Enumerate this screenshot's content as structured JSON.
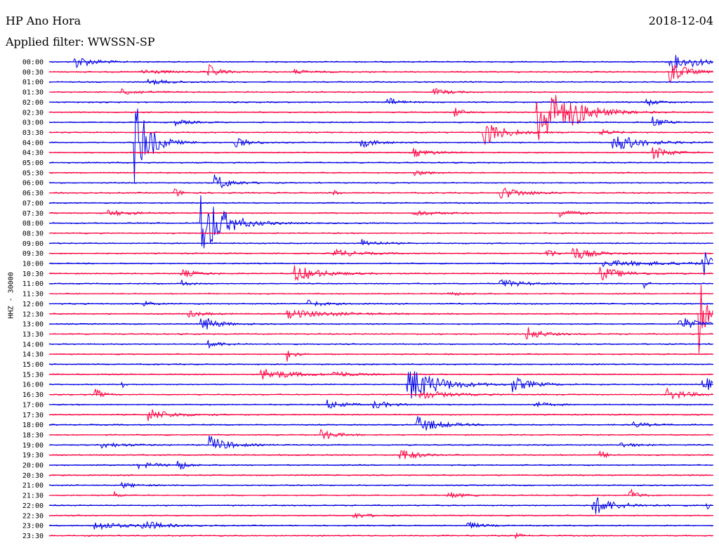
{
  "header": {
    "station": "HP Ano Hora",
    "filter": "Applied filter: WWSSN-SP",
    "date": "2018-12-04"
  },
  "chart_data": {
    "type": "line",
    "title": "HP Ano Hora",
    "subtitle": "Applied filter: WWSSN-SP",
    "date": "2018-12-04",
    "ylabel": "HHZ - 30000",
    "row_labels": [
      "00:00",
      "00:30",
      "01:00",
      "01:30",
      "02:00",
      "02:30",
      "03:00",
      "03:30",
      "04:00",
      "04:30",
      "05:00",
      "05:30",
      "06:00",
      "06:30",
      "07:00",
      "07:30",
      "08:00",
      "08:30",
      "09:00",
      "09:30",
      "10:00",
      "10:30",
      "11:00",
      "11:30",
      "12:00",
      "12:30",
      "13:00",
      "13:30",
      "14:00",
      "14:30",
      "15:00",
      "15:30",
      "16:00",
      "16:30",
      "17:00",
      "17:30",
      "18:00",
      "18:30",
      "19:00",
      "19:30",
      "20:00",
      "20:30",
      "21:00",
      "21:30",
      "22:00",
      "22:30",
      "23:00",
      "23:30"
    ],
    "trace_colors": [
      "#0000e6",
      "#ff0040"
    ],
    "events": [
      {
        "row": 0,
        "t": 0.04,
        "amp": 9,
        "dur": 0.025
      },
      {
        "row": 0,
        "t": 0.935,
        "amp": 14,
        "dur": 0.02
      },
      {
        "row": 0,
        "t": 0.97,
        "amp": 4,
        "dur": 0.03
      },
      {
        "row": 1,
        "t": 0.14,
        "amp": 4,
        "dur": 0.03
      },
      {
        "row": 1,
        "t": 0.24,
        "amp": 10,
        "dur": 0.015
      },
      {
        "row": 1,
        "t": 0.37,
        "amp": 3,
        "dur": 0.02
      },
      {
        "row": 1,
        "t": 0.935,
        "amp": 18,
        "dur": 0.02
      },
      {
        "row": 2,
        "t": 0.15,
        "amp": 4,
        "dur": 0.03
      },
      {
        "row": 3,
        "t": 0.11,
        "amp": 4,
        "dur": 0.03
      },
      {
        "row": 3,
        "t": 0.58,
        "amp": 5,
        "dur": 0.02
      },
      {
        "row": 4,
        "t": 0.51,
        "amp": 7,
        "dur": 0.015
      },
      {
        "row": 4,
        "t": 0.9,
        "amp": 5,
        "dur": 0.015
      },
      {
        "row": 5,
        "t": 0.61,
        "amp": 8,
        "dur": 0.01
      },
      {
        "row": 5,
        "t": 0.79,
        "amp": 9,
        "dur": 0.03
      },
      {
        "row": 5,
        "t": 0.735,
        "amp": 55,
        "dur": 0.035
      },
      {
        "row": 6,
        "t": 0.19,
        "amp": 4,
        "dur": 0.02
      },
      {
        "row": 6,
        "t": 0.91,
        "amp": 8,
        "dur": 0.015
      },
      {
        "row": 7,
        "t": 0.655,
        "amp": 20,
        "dur": 0.025
      },
      {
        "row": 7,
        "t": 0.83,
        "amp": 4,
        "dur": 0.02
      },
      {
        "row": 8,
        "t": 0.13,
        "amp": 60,
        "dur": 0.02
      },
      {
        "row": 8,
        "t": 0.28,
        "amp": 7,
        "dur": 0.02
      },
      {
        "row": 8,
        "t": 0.47,
        "amp": 7,
        "dur": 0.02
      },
      {
        "row": 8,
        "t": 0.85,
        "amp": 14,
        "dur": 0.035
      },
      {
        "row": 9,
        "t": 0.55,
        "amp": 6,
        "dur": 0.025
      },
      {
        "row": 9,
        "t": 0.91,
        "amp": 10,
        "dur": 0.02
      },
      {
        "row": 11,
        "t": 0.55,
        "amp": 4,
        "dur": 0.02
      },
      {
        "row": 12,
        "t": 0.25,
        "amp": 12,
        "dur": 0.02
      },
      {
        "row": 13,
        "t": 0.68,
        "amp": 9,
        "dur": 0.03
      },
      {
        "row": 13,
        "t": 0.19,
        "amp": 6,
        "dur": 0.01
      },
      {
        "row": 13,
        "t": 0.43,
        "amp": 5,
        "dur": 0.005
      },
      {
        "row": 15,
        "t": 0.09,
        "amp": 4,
        "dur": 0.03
      },
      {
        "row": 15,
        "t": 0.55,
        "amp": 4,
        "dur": 0.03
      },
      {
        "row": 15,
        "t": 0.77,
        "amp": 6,
        "dur": 0.02
      },
      {
        "row": 16,
        "t": 0.23,
        "amp": 50,
        "dur": 0.03
      },
      {
        "row": 18,
        "t": 0.47,
        "amp": 6,
        "dur": 0.02
      },
      {
        "row": 19,
        "t": 0.43,
        "amp": 6,
        "dur": 0.03
      },
      {
        "row": 19,
        "t": 0.75,
        "amp": 8,
        "dur": 0.01
      },
      {
        "row": 19,
        "t": 0.79,
        "amp": 10,
        "dur": 0.025
      },
      {
        "row": 20,
        "t": 0.835,
        "amp": 4,
        "dur": 0.1
      },
      {
        "row": 20,
        "t": 0.985,
        "amp": 20,
        "dur": 0.01
      },
      {
        "row": 21,
        "t": 0.2,
        "amp": 6,
        "dur": 0.02
      },
      {
        "row": 21,
        "t": 0.37,
        "amp": 12,
        "dur": 0.035
      },
      {
        "row": 21,
        "t": 0.83,
        "amp": 10,
        "dur": 0.03
      },
      {
        "row": 22,
        "t": 0.2,
        "amp": 5,
        "dur": 0.01
      },
      {
        "row": 22,
        "t": 0.68,
        "amp": 6,
        "dur": 0.03
      },
      {
        "row": 22,
        "t": 0.895,
        "amp": 8,
        "dur": 0.005
      },
      {
        "row": 23,
        "t": 0.6,
        "amp": 3,
        "dur": 0.02
      },
      {
        "row": 24,
        "t": 0.14,
        "amp": 7,
        "dur": 0.01
      },
      {
        "row": 24,
        "t": 0.39,
        "amp": 5,
        "dur": 0.02
      },
      {
        "row": 25,
        "t": 0.21,
        "amp": 5,
        "dur": 0.02
      },
      {
        "row": 25,
        "t": 0.36,
        "amp": 6,
        "dur": 0.06
      },
      {
        "row": 25,
        "t": 0.98,
        "amp": 60,
        "dur": 0.008
      },
      {
        "row": 26,
        "t": 0.23,
        "amp": 12,
        "dur": 0.02
      },
      {
        "row": 26,
        "t": 0.95,
        "amp": 10,
        "dur": 0.025
      },
      {
        "row": 27,
        "t": 0.72,
        "amp": 10,
        "dur": 0.02
      },
      {
        "row": 28,
        "t": 0.24,
        "amp": 5,
        "dur": 0.02
      },
      {
        "row": 29,
        "t": 0.36,
        "amp": 10,
        "dur": 0.008
      },
      {
        "row": 31,
        "t": 0.32,
        "amp": 9,
        "dur": 0.04
      },
      {
        "row": 31,
        "t": 0.43,
        "amp": 5,
        "dur": 0.02
      },
      {
        "row": 32,
        "t": 0.11,
        "amp": 6,
        "dur": 0.005
      },
      {
        "row": 32,
        "t": 0.54,
        "amp": 28,
        "dur": 0.04
      },
      {
        "row": 32,
        "t": 0.695,
        "amp": 12,
        "dur": 0.025
      },
      {
        "row": 32,
        "t": 0.985,
        "amp": 12,
        "dur": 0.015
      },
      {
        "row": 33,
        "t": 0.07,
        "amp": 8,
        "dur": 0.01
      },
      {
        "row": 33,
        "t": 0.56,
        "amp": 6,
        "dur": 0.04
      },
      {
        "row": 33,
        "t": 0.93,
        "amp": 8,
        "dur": 0.03
      },
      {
        "row": 34,
        "t": 0.42,
        "amp": 7,
        "dur": 0.02
      },
      {
        "row": 34,
        "t": 0.49,
        "amp": 6,
        "dur": 0.02
      },
      {
        "row": 34,
        "t": 0.73,
        "amp": 4,
        "dur": 0.02
      },
      {
        "row": 35,
        "t": 0.15,
        "amp": 9,
        "dur": 0.03
      },
      {
        "row": 36,
        "t": 0.555,
        "amp": 12,
        "dur": 0.03
      },
      {
        "row": 36,
        "t": 0.88,
        "amp": 4,
        "dur": 0.02
      },
      {
        "row": 37,
        "t": 0.41,
        "amp": 8,
        "dur": 0.02
      },
      {
        "row": 38,
        "t": 0.08,
        "amp": 4,
        "dur": 0.03
      },
      {
        "row": 38,
        "t": 0.24,
        "amp": 14,
        "dur": 0.025
      },
      {
        "row": 38,
        "t": 0.86,
        "amp": 4,
        "dur": 0.02
      },
      {
        "row": 39,
        "t": 0.53,
        "amp": 10,
        "dur": 0.02
      },
      {
        "row": 39,
        "t": 0.83,
        "amp": 6,
        "dur": 0.01
      },
      {
        "row": 40,
        "t": 0.135,
        "amp": 4,
        "dur": 0.03
      },
      {
        "row": 40,
        "t": 0.195,
        "amp": 8,
        "dur": 0.01
      },
      {
        "row": 42,
        "t": 0.11,
        "amp": 4,
        "dur": 0.02
      },
      {
        "row": 43,
        "t": 0.1,
        "amp": 6,
        "dur": 0.005
      },
      {
        "row": 43,
        "t": 0.6,
        "amp": 5,
        "dur": 0.02
      },
      {
        "row": 43,
        "t": 0.875,
        "amp": 10,
        "dur": 0.01
      },
      {
        "row": 44,
        "t": 0.82,
        "amp": 14,
        "dur": 0.03
      },
      {
        "row": 44,
        "t": 0.99,
        "amp": 5,
        "dur": 0.01
      },
      {
        "row": 45,
        "t": 0.46,
        "amp": 4,
        "dur": 0.02
      },
      {
        "row": 46,
        "t": 0.07,
        "amp": 7,
        "dur": 0.03
      },
      {
        "row": 46,
        "t": 0.14,
        "amp": 8,
        "dur": 0.025
      },
      {
        "row": 46,
        "t": 0.63,
        "amp": 5,
        "dur": 0.02
      },
      {
        "row": 47,
        "t": 0.7,
        "amp": 4,
        "dur": 0.01
      }
    ]
  }
}
